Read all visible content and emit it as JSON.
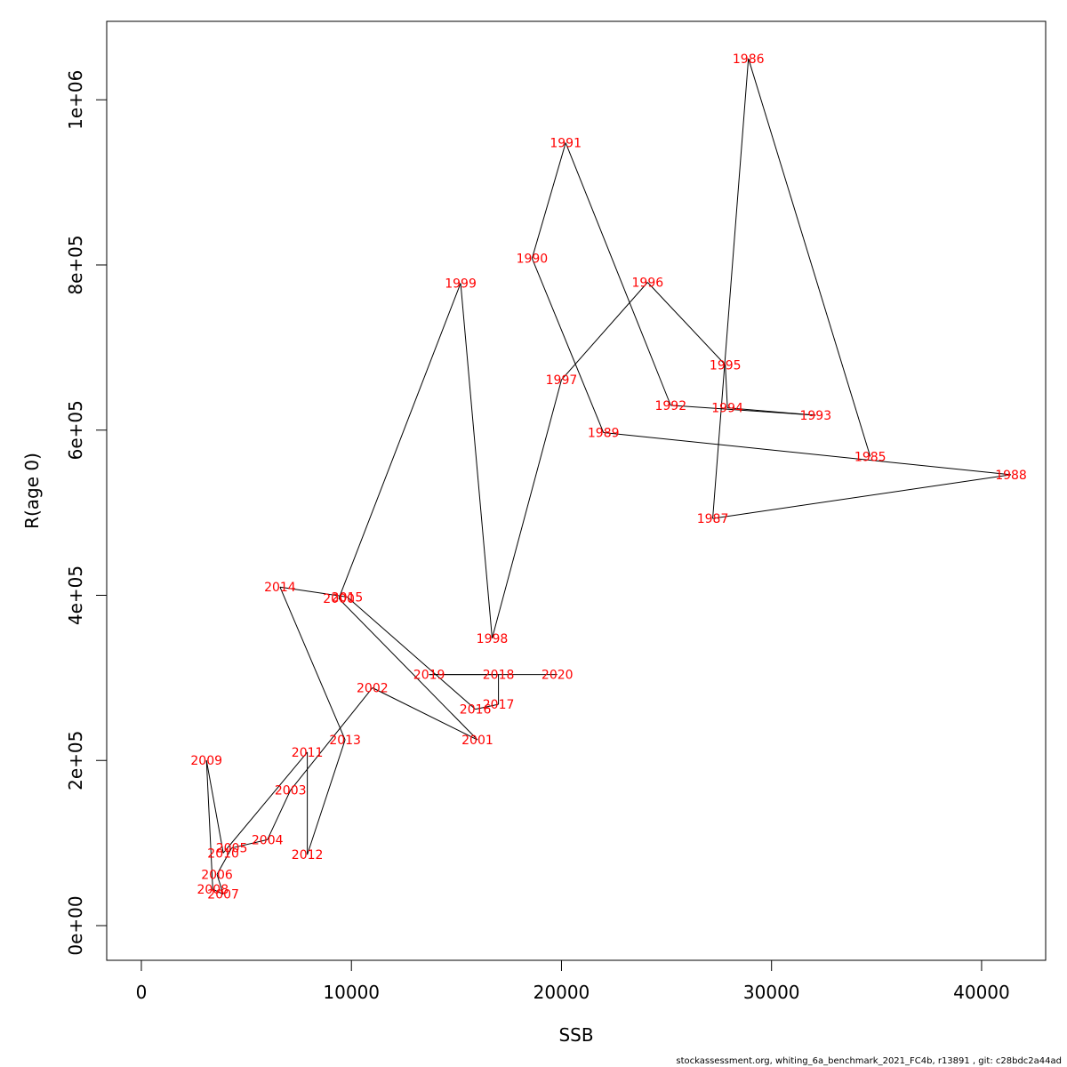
{
  "chart_data": {
    "type": "line",
    "xlabel": "SSB",
    "ylabel": "R(age 0)",
    "xlim": [
      -1650,
      43050
    ],
    "ylim": [
      -42000,
      1095000
    ],
    "xticks": [
      0,
      10000,
      20000,
      30000,
      40000
    ],
    "xtick_labels": [
      "0",
      "10000",
      "20000",
      "30000",
      "40000"
    ],
    "yticks": [
      0,
      200000,
      400000,
      600000,
      800000,
      1000000
    ],
    "ytick_labels": [
      "0e+00",
      "2e+05",
      "4e+05",
      "6e+05",
      "8e+05",
      "1e+06"
    ],
    "grid": false,
    "line_color": "#000000",
    "label_color": "#ff0000",
    "points": [
      {
        "year": "1985",
        "x": 34700,
        "y": 568000
      },
      {
        "year": "1986",
        "x": 28900,
        "y": 1050000
      },
      {
        "year": "1987",
        "x": 27200,
        "y": 493000
      },
      {
        "year": "1988",
        "x": 41400,
        "y": 546000
      },
      {
        "year": "1989",
        "x": 22000,
        "y": 597000
      },
      {
        "year": "1990",
        "x": 18600,
        "y": 808000
      },
      {
        "year": "1991",
        "x": 20200,
        "y": 948000
      },
      {
        "year": "1992",
        "x": 25200,
        "y": 630000
      },
      {
        "year": "1993",
        "x": 32100,
        "y": 618000
      },
      {
        "year": "1994",
        "x": 27900,
        "y": 627000
      },
      {
        "year": "1995",
        "x": 27800,
        "y": 679000
      },
      {
        "year": "1996",
        "x": 24100,
        "y": 779000
      },
      {
        "year": "1997",
        "x": 20000,
        "y": 661000
      },
      {
        "year": "1998",
        "x": 16700,
        "y": 348000
      },
      {
        "year": "1999",
        "x": 15200,
        "y": 778000
      },
      {
        "year": "2000",
        "x": 9400,
        "y": 396000
      },
      {
        "year": "2001",
        "x": 16000,
        "y": 225000
      },
      {
        "year": "2002",
        "x": 11000,
        "y": 288000
      },
      {
        "year": "2003",
        "x": 7100,
        "y": 164000
      },
      {
        "year": "2004",
        "x": 6000,
        "y": 104000
      },
      {
        "year": "2005",
        "x": 4300,
        "y": 94000
      },
      {
        "year": "2006",
        "x": 3600,
        "y": 62000
      },
      {
        "year": "2007",
        "x": 3900,
        "y": 38000
      },
      {
        "year": "2008",
        "x": 3400,
        "y": 44000
      },
      {
        "year": "2009",
        "x": 3100,
        "y": 200000
      },
      {
        "year": "2010",
        "x": 3900,
        "y": 88000
      },
      {
        "year": "2011",
        "x": 7900,
        "y": 210000
      },
      {
        "year": "2012",
        "x": 7900,
        "y": 86000
      },
      {
        "year": "2013",
        "x": 9700,
        "y": 225000
      },
      {
        "year": "2014",
        "x": 6600,
        "y": 410000
      },
      {
        "year": "2015",
        "x": 9800,
        "y": 398000
      },
      {
        "year": "2016",
        "x": 15900,
        "y": 262000
      },
      {
        "year": "2017",
        "x": 17000,
        "y": 268000
      },
      {
        "year": "2018",
        "x": 17000,
        "y": 304000
      },
      {
        "year": "2019",
        "x": 13700,
        "y": 304000
      },
      {
        "year": "2020",
        "x": 19800,
        "y": 304000
      }
    ]
  },
  "footer_text": "stockassessment.org, whiting_6a_benchmark_2021_FC4b, r13891 , git: c28bdc2a44ad"
}
